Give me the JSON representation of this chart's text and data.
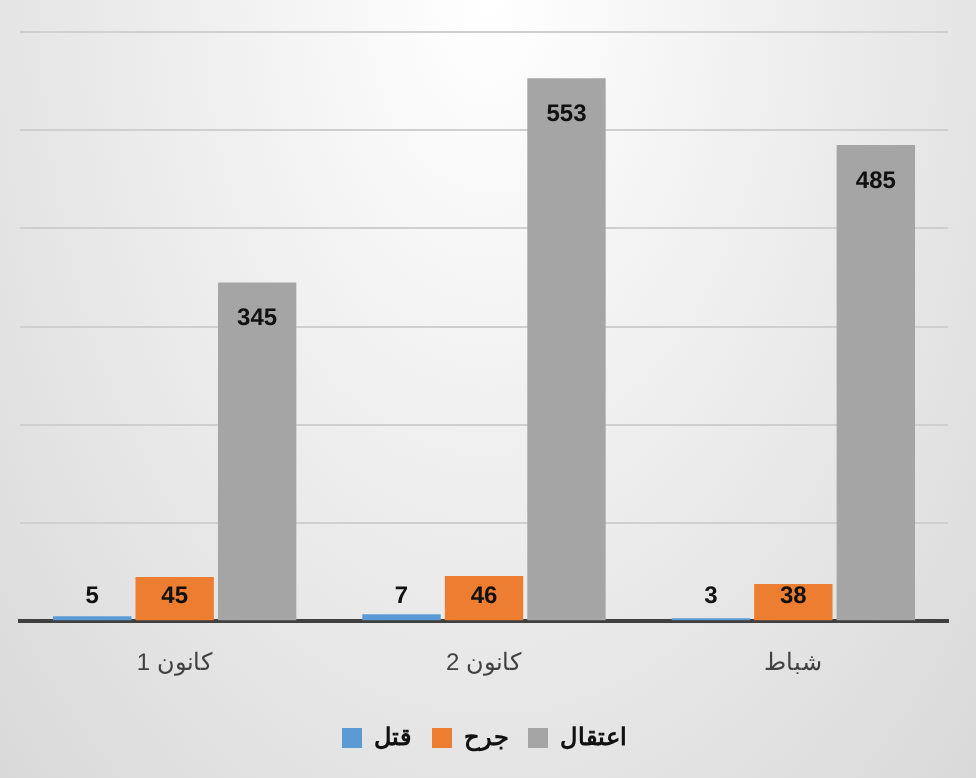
{
  "chart_data": {
    "type": "bar",
    "categories": [
      "كانون 1",
      "كانون 2",
      "شباط"
    ],
    "series": [
      {
        "name": "قتل",
        "color": "#5b9bd5",
        "values": [
          5,
          7,
          3
        ]
      },
      {
        "name": "جرح",
        "color": "#ed7d31",
        "values": [
          45,
          46,
          38
        ]
      },
      {
        "name": "اعتقال",
        "color": "#a5a5a5",
        "values": [
          345,
          553,
          485
        ]
      }
    ],
    "ylim": [
      0,
      600
    ],
    "yticks": [
      {
        "value": 0,
        "label": null
      },
      {
        "value": 100,
        "label": null
      },
      {
        "value": 200,
        "label": null
      },
      {
        "value": 300,
        "label": null
      },
      {
        "value": 400,
        "label": null
      },
      {
        "value": 500,
        "label": null
      },
      {
        "value": 600,
        "label": null
      }
    ],
    "grid": "y",
    "legend": "bottom",
    "data_labels": true
  }
}
